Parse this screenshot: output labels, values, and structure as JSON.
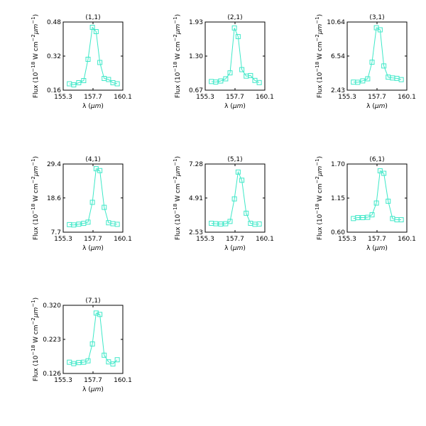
{
  "figure": {
    "xlabel_text": "λ (",
    "xlabel_unit": "μm",
    "xlabel_close": ")",
    "ylabel_prefix": "Flux (10",
    "ylabel_exp1": "−18",
    "ylabel_mid": " W cm",
    "ylabel_exp2": "−2",
    "ylabel_mu": "μm",
    "ylabel_exp3": "−1",
    "ylabel_close": ")"
  },
  "colors": {
    "series": "#3ee8c8",
    "axes": "#000000",
    "background": "#ffffff"
  },
  "chart_data": [
    {
      "type": "line",
      "title": "(1,1)",
      "xlim": [
        155.3,
        160.1
      ],
      "ylim": [
        0.16,
        0.48
      ],
      "xticks": [
        "155.3",
        "157.7",
        "160.1"
      ],
      "yticks": [
        "0.16",
        "0.32",
        "0.48"
      ],
      "marker": "square",
      "x": [
        155.8,
        156.15,
        156.55,
        156.95,
        157.3,
        157.65,
        157.95,
        158.25,
        158.6,
        158.95,
        159.3,
        159.65
      ],
      "y": [
        0.19,
        0.185,
        0.195,
        0.205,
        0.305,
        0.455,
        0.435,
        0.29,
        0.215,
        0.21,
        0.195,
        0.19
      ]
    },
    {
      "type": "line",
      "title": "(2,1)",
      "xlim": [
        155.3,
        160.1
      ],
      "ylim": [
        0.67,
        1.93
      ],
      "xticks": [
        "155.3",
        "157.7",
        "160.1"
      ],
      "yticks": [
        "0.67",
        "1.30",
        "1.93"
      ],
      "marker": "square",
      "x": [
        155.8,
        156.15,
        156.55,
        156.95,
        157.3,
        157.65,
        157.95,
        158.25,
        158.6,
        158.95,
        159.3,
        159.65
      ],
      "y": [
        0.83,
        0.82,
        0.84,
        0.88,
        0.99,
        1.82,
        1.66,
        1.05,
        0.93,
        0.94,
        0.85,
        0.81
      ]
    },
    {
      "type": "line",
      "title": "(3,1)",
      "xlim": [
        155.3,
        160.1
      ],
      "ylim": [
        2.43,
        10.64
      ],
      "xticks": [
        "155.3",
        "157.7",
        "160.1"
      ],
      "yticks": [
        "2.43",
        "6.54",
        "10.64"
      ],
      "marker": "square",
      "x": [
        155.8,
        156.15,
        156.55,
        156.95,
        157.3,
        157.65,
        157.95,
        158.25,
        158.6,
        158.95,
        159.3,
        159.65
      ],
      "y": [
        3.4,
        3.38,
        3.55,
        3.8,
        5.8,
        9.95,
        9.7,
        5.35,
        4.0,
        3.9,
        3.85,
        3.7
      ]
    },
    {
      "type": "line",
      "title": "(4,1)",
      "xlim": [
        155.3,
        160.1
      ],
      "ylim": [
        7.7,
        29.4
      ],
      "xticks": [
        "155.3",
        "157.7",
        "160.1"
      ],
      "yticks": [
        "7.7",
        "18.6",
        "29.4"
      ],
      "marker": "square",
      "x": [
        155.8,
        156.15,
        156.55,
        156.95,
        157.3,
        157.65,
        157.95,
        158.25,
        158.6,
        158.95,
        159.3,
        159.65
      ],
      "y": [
        10.1,
        10.0,
        10.25,
        10.5,
        10.9,
        17.2,
        27.9,
        27.3,
        15.6,
        10.7,
        10.4,
        10.2
      ]
    },
    {
      "type": "line",
      "title": "(5,1)",
      "xlim": [
        155.3,
        160.1
      ],
      "ylim": [
        2.53,
        7.28
      ],
      "xticks": [
        "155.3",
        "157.7",
        "160.1"
      ],
      "yticks": [
        "2.53",
        "4.91",
        "7.28"
      ],
      "marker": "square",
      "x": [
        155.8,
        156.15,
        156.55,
        156.95,
        157.3,
        157.65,
        157.95,
        158.25,
        158.6,
        158.95,
        159.3,
        159.65
      ],
      "y": [
        3.15,
        3.12,
        3.1,
        3.12,
        3.28,
        4.85,
        6.72,
        6.15,
        3.85,
        3.15,
        3.08,
        3.1
      ]
    },
    {
      "type": "line",
      "title": "(6,1)",
      "xlim": [
        155.3,
        160.1
      ],
      "ylim": [
        0.6,
        1.7
      ],
      "xticks": [
        "155.3",
        "157.7",
        "160.1"
      ],
      "yticks": [
        "0.60",
        "1.15",
        "1.70"
      ],
      "marker": "square",
      "x": [
        155.8,
        156.15,
        156.55,
        156.95,
        157.3,
        157.65,
        157.95,
        158.25,
        158.6,
        158.95,
        159.3,
        159.65
      ],
      "y": [
        0.82,
        0.835,
        0.835,
        0.84,
        0.88,
        1.07,
        1.59,
        1.55,
        1.1,
        0.82,
        0.8,
        0.8
      ]
    },
    {
      "type": "line",
      "title": "(7,1)",
      "xlim": [
        155.3,
        160.1
      ],
      "ylim": [
        0.126,
        0.32
      ],
      "xticks": [
        "155.3",
        "157.7",
        "160.1"
      ],
      "yticks": [
        "0.126",
        "0.223",
        "0.320"
      ],
      "marker": "square",
      "x": [
        155.8,
        156.15,
        156.55,
        156.95,
        157.3,
        157.65,
        157.95,
        158.25,
        158.6,
        158.95,
        159.3,
        159.65
      ],
      "y": [
        0.158,
        0.154,
        0.157,
        0.158,
        0.162,
        0.21,
        0.298,
        0.294,
        0.178,
        0.159,
        0.153,
        0.165
      ]
    }
  ]
}
